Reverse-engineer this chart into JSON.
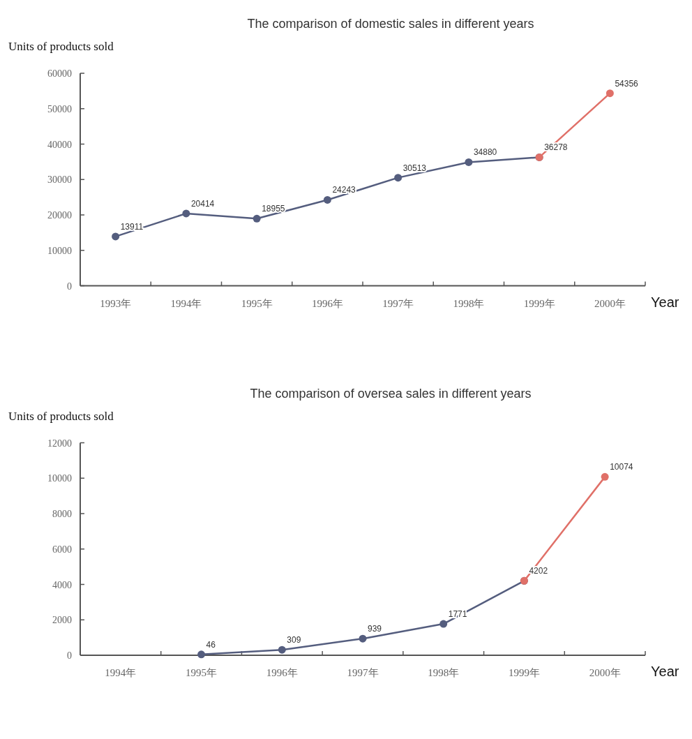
{
  "chart_data": [
    {
      "type": "line",
      "title": "The comparison of domestic sales in different years",
      "ylabel": "Units of products sold",
      "xlabel": "Year",
      "categories": [
        "1993年",
        "1994年",
        "1995年",
        "1996年",
        "1997年",
        "1998年",
        "1999年",
        "2000年"
      ],
      "ylim": [
        0,
        60000
      ],
      "yticks": [
        0,
        10000,
        20000,
        30000,
        40000,
        50000,
        60000
      ],
      "marker": "circle",
      "series": [
        {
          "color": "#545d7e",
          "values": [
            13911,
            20414,
            18955,
            24243,
            30513,
            34880,
            36278,
            null
          ],
          "value_labels": [
            "13911",
            "20414",
            "18955",
            "24243",
            "30513",
            "34880",
            "36278",
            null
          ]
        },
        {
          "color": "#e07068",
          "values": [
            null,
            null,
            null,
            null,
            null,
            null,
            36278,
            54356
          ],
          "value_labels": [
            null,
            null,
            null,
            null,
            null,
            null,
            null,
            "54356"
          ]
        }
      ]
    },
    {
      "type": "line",
      "title": "The comparison of oversea sales in different years",
      "ylabel": "Units of products sold",
      "xlabel": "Year",
      "categories": [
        "1994年",
        "1995年",
        "1996年",
        "1997年",
        "1998年",
        "1999年",
        "2000年"
      ],
      "ylim": [
        0,
        12000
      ],
      "yticks": [
        0,
        2000,
        4000,
        6000,
        8000,
        10000,
        12000
      ],
      "marker": "circle",
      "series": [
        {
          "color": "#545d7e",
          "values": [
            null,
            46,
            309,
            939,
            1771,
            4202,
            null
          ],
          "value_labels": [
            null,
            "46",
            "309",
            "939",
            "1771",
            "4202",
            null
          ]
        },
        {
          "color": "#e07068",
          "values": [
            null,
            null,
            null,
            null,
            null,
            4202,
            10074
          ],
          "value_labels": [
            null,
            null,
            null,
            null,
            null,
            null,
            "10074"
          ]
        }
      ]
    }
  ]
}
